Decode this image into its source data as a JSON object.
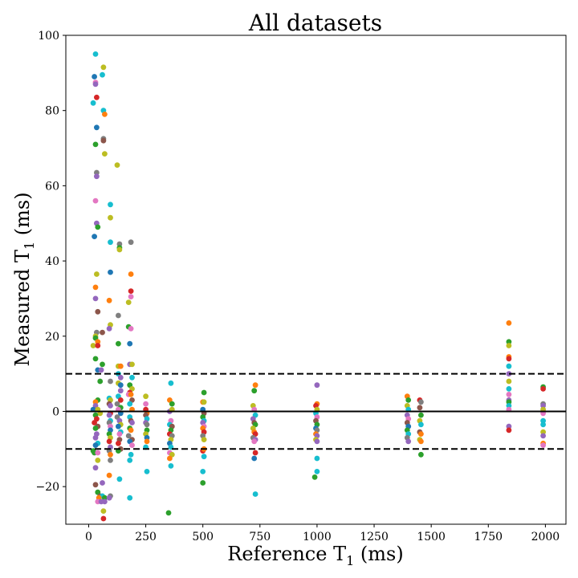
{
  "chart_data": {
    "type": "scatter",
    "title": "All datasets",
    "xlabel": "Reference T",
    "xlabel_sub": "1",
    "xlabel_unit": " (ms)",
    "ylabel": "Measured T",
    "ylabel_sub": "1",
    "ylabel_unit": " (ms)",
    "xlim": [
      -100,
      2090
    ],
    "ylim": [
      -30,
      100
    ],
    "xticks": [
      0,
      250,
      500,
      750,
      1000,
      1250,
      1500,
      1750,
      2000
    ],
    "yticks": [
      -20,
      0,
      20,
      40,
      60,
      80,
      100
    ],
    "xtick_labels": [
      "0",
      "250",
      "500",
      "750",
      "1000",
      "1250",
      "1500",
      "1750",
      "2000"
    ],
    "ytick_labels": [
      "−20",
      "0",
      "20",
      "40",
      "60",
      "80",
      "100"
    ],
    "reference_lines": [
      {
        "y": 0,
        "style": "solid"
      },
      {
        "y": 10,
        "style": "dashed"
      },
      {
        "y": -10,
        "style": "dashed"
      }
    ],
    "colors": [
      "#1f77b4",
      "#ff7f0e",
      "#2ca02c",
      "#d62728",
      "#9467bd",
      "#8c564b",
      "#e377c2",
      "#7f7f7f",
      "#bcbd22",
      "#17becf"
    ],
    "points": [
      [
        30,
        95,
        9
      ],
      [
        65,
        91.5,
        8
      ],
      [
        25,
        89,
        0
      ],
      [
        60,
        89.5,
        9
      ],
      [
        30,
        87.5,
        6
      ],
      [
        30,
        87,
        4
      ],
      [
        35,
        83.5,
        3
      ],
      [
        20,
        82,
        9
      ],
      [
        65,
        80,
        9
      ],
      [
        70,
        79,
        1
      ],
      [
        35,
        75.5,
        0
      ],
      [
        65,
        72.5,
        7
      ],
      [
        65,
        72,
        5
      ],
      [
        30,
        71,
        2
      ],
      [
        70,
        68.5,
        8
      ],
      [
        125,
        65.5,
        8
      ],
      [
        35,
        63.5,
        7
      ],
      [
        35,
        62.5,
        4
      ],
      [
        30,
        56,
        6
      ],
      [
        95,
        55,
        9
      ],
      [
        95,
        51.5,
        8
      ],
      [
        35,
        50,
        4
      ],
      [
        40,
        49,
        2
      ],
      [
        25,
        46.5,
        0
      ],
      [
        95,
        45,
        9
      ],
      [
        135,
        44.5,
        7
      ],
      [
        185,
        45,
        7
      ],
      [
        135,
        43.5,
        2
      ],
      [
        135,
        43,
        8
      ],
      [
        95,
        37,
        0
      ],
      [
        35,
        36.5,
        8
      ],
      [
        185,
        36.5,
        1
      ],
      [
        185,
        32,
        3
      ],
      [
        30,
        33,
        1
      ],
      [
        185,
        30.5,
        6
      ],
      [
        30,
        30,
        4
      ],
      [
        90,
        29.5,
        1
      ],
      [
        175,
        29,
        8
      ],
      [
        40,
        26.5,
        5
      ],
      [
        130,
        25.5,
        7
      ],
      [
        95,
        23,
        8
      ],
      [
        90,
        22,
        4
      ],
      [
        175,
        22.5,
        2
      ],
      [
        185,
        22,
        6
      ],
      [
        35,
        21,
        7
      ],
      [
        60,
        21,
        5
      ],
      [
        30,
        20,
        8
      ],
      [
        30,
        19.5,
        2
      ],
      [
        40,
        18.5,
        1
      ],
      [
        130,
        18,
        2
      ],
      [
        180,
        18,
        0
      ],
      [
        20,
        17.5,
        8
      ],
      [
        40,
        17.5,
        3
      ],
      [
        30,
        14,
        2
      ],
      [
        60,
        12.5,
        2
      ],
      [
        130,
        12,
        8
      ],
      [
        140,
        12,
        1
      ],
      [
        180,
        12.5,
        4
      ],
      [
        190,
        12.5,
        8
      ],
      [
        40,
        11,
        0
      ],
      [
        55,
        11,
        4
      ],
      [
        130,
        10,
        9
      ],
      [
        140,
        9,
        4
      ],
      [
        190,
        9,
        9
      ],
      [
        50,
        8,
        2
      ],
      [
        95,
        8,
        7
      ],
      [
        130,
        7.5,
        8
      ],
      [
        140,
        7,
        0
      ],
      [
        180,
        7,
        2
      ],
      [
        190,
        6,
        8
      ],
      [
        140,
        5.5,
        4
      ],
      [
        180,
        5,
        3
      ],
      [
        175,
        4.5,
        6
      ],
      [
        185,
        4.5,
        1
      ],
      [
        130,
        4,
        9
      ],
      [
        90,
        3.5,
        9
      ],
      [
        40,
        3,
        2
      ],
      [
        95,
        3,
        8
      ],
      [
        140,
        3,
        3
      ],
      [
        190,
        3,
        5
      ],
      [
        30,
        2.5,
        1
      ],
      [
        90,
        2,
        5
      ],
      [
        125,
        2,
        7
      ],
      [
        180,
        2,
        9
      ],
      [
        30,
        1.5,
        4
      ],
      [
        95,
        1.5,
        4
      ],
      [
        140,
        1,
        2
      ],
      [
        20,
        0.5,
        0
      ],
      [
        40,
        0.5,
        8
      ],
      [
        130,
        0.5,
        6
      ],
      [
        190,
        0.5,
        1
      ],
      [
        50,
        -0.5,
        8
      ],
      [
        95,
        -0.5,
        3
      ],
      [
        140,
        -0.5,
        0
      ],
      [
        30,
        -1,
        2
      ],
      [
        90,
        -1,
        4
      ],
      [
        125,
        -1.5,
        7
      ],
      [
        180,
        -1.5,
        9
      ],
      [
        35,
        -2,
        3
      ],
      [
        95,
        -2.5,
        9
      ],
      [
        135,
        -2.5,
        4
      ],
      [
        185,
        -2.5,
        5
      ],
      [
        25,
        -3,
        3
      ],
      [
        90,
        -3,
        7
      ],
      [
        140,
        -3.5,
        8
      ],
      [
        190,
        -3,
        4
      ],
      [
        40,
        -4,
        5
      ],
      [
        95,
        -4,
        6
      ],
      [
        130,
        -4,
        0
      ],
      [
        180,
        -4.5,
        2
      ],
      [
        30,
        -4.5,
        2
      ],
      [
        95,
        -5,
        0
      ],
      [
        140,
        -5.5,
        9
      ],
      [
        185,
        -5,
        1
      ],
      [
        35,
        -6,
        4
      ],
      [
        90,
        -6,
        2
      ],
      [
        135,
        -6,
        6
      ],
      [
        175,
        -6.5,
        7
      ],
      [
        30,
        -7,
        4
      ],
      [
        95,
        -7,
        8
      ],
      [
        135,
        -7.5,
        5
      ],
      [
        190,
        -7.5,
        5
      ],
      [
        40,
        -8.5,
        9
      ],
      [
        90,
        -8,
        3
      ],
      [
        130,
        -8.5,
        3
      ],
      [
        180,
        -8,
        0
      ],
      [
        30,
        -9,
        0
      ],
      [
        95,
        -9.5,
        4
      ],
      [
        140,
        -10,
        5
      ],
      [
        190,
        -9,
        6
      ],
      [
        20,
        -10.5,
        2
      ],
      [
        90,
        -10.5,
        7
      ],
      [
        130,
        -10.5,
        2
      ],
      [
        25,
        -11,
        2
      ],
      [
        40,
        -11,
        6
      ],
      [
        95,
        -11.5,
        1
      ],
      [
        185,
        -11.5,
        9
      ],
      [
        40,
        -13,
        8
      ],
      [
        95,
        -13,
        7
      ],
      [
        180,
        -13,
        9
      ],
      [
        30,
        -15,
        4
      ],
      [
        90,
        -17,
        1
      ],
      [
        60,
        -19,
        4
      ],
      [
        30,
        -19.5,
        5
      ],
      [
        135,
        -18,
        9
      ],
      [
        40,
        -21.5,
        2
      ],
      [
        50,
        -22.5,
        5
      ],
      [
        60,
        -22.5,
        9
      ],
      [
        45,
        -23,
        1
      ],
      [
        70,
        -23,
        2
      ],
      [
        95,
        -22.5,
        7
      ],
      [
        90,
        -23,
        4
      ],
      [
        180,
        -23,
        9
      ],
      [
        40,
        -24,
        6
      ],
      [
        55,
        -24,
        4
      ],
      [
        70,
        -24,
        4
      ],
      [
        65,
        -26.5,
        8
      ],
      [
        65,
        -28.5,
        3
      ],
      [
        250,
        4,
        8
      ],
      [
        250,
        2,
        6
      ],
      [
        250,
        0.5,
        3
      ],
      [
        255,
        -0.5,
        1
      ],
      [
        250,
        -1,
        5
      ],
      [
        255,
        -2,
        9
      ],
      [
        250,
        -3,
        4
      ],
      [
        255,
        -3.5,
        7
      ],
      [
        255,
        -5,
        2
      ],
      [
        250,
        -6,
        8
      ],
      [
        255,
        -7,
        0
      ],
      [
        255,
        -8,
        1
      ],
      [
        250,
        -9.5,
        9
      ],
      [
        255,
        -16,
        9
      ],
      [
        360,
        7.5,
        9
      ],
      [
        355,
        3,
        1
      ],
      [
        365,
        2,
        2
      ],
      [
        355,
        0,
        4
      ],
      [
        365,
        0.5,
        8
      ],
      [
        360,
        -2.5,
        6
      ],
      [
        355,
        -3.5,
        9
      ],
      [
        365,
        -4,
        5
      ],
      [
        360,
        -5,
        2
      ],
      [
        355,
        -6,
        3
      ],
      [
        365,
        -6.5,
        7
      ],
      [
        360,
        -7.5,
        8
      ],
      [
        355,
        -8.5,
        0
      ],
      [
        360,
        -9.5,
        9
      ],
      [
        355,
        -11,
        6
      ],
      [
        365,
        -11.5,
        8
      ],
      [
        355,
        -12.5,
        1
      ],
      [
        360,
        -14.5,
        9
      ],
      [
        350,
        -27,
        2
      ],
      [
        505,
        5,
        2
      ],
      [
        500,
        2.5,
        1
      ],
      [
        505,
        2.5,
        8
      ],
      [
        500,
        0.5,
        0
      ],
      [
        505,
        -0.5,
        5
      ],
      [
        500,
        -1.5,
        2
      ],
      [
        505,
        -2.5,
        9
      ],
      [
        500,
        -3,
        4
      ],
      [
        505,
        -4,
        6
      ],
      [
        500,
        -4.5,
        1
      ],
      [
        505,
        -5.5,
        3
      ],
      [
        500,
        -6.5,
        7
      ],
      [
        505,
        -7.5,
        8
      ],
      [
        500,
        -10.5,
        3
      ],
      [
        505,
        -10,
        1
      ],
      [
        505,
        -12,
        9
      ],
      [
        500,
        -16,
        9
      ],
      [
        500,
        -19,
        2
      ],
      [
        725,
        5.5,
        2
      ],
      [
        730,
        7,
        1
      ],
      [
        720,
        1.5,
        8
      ],
      [
        725,
        0.5,
        6
      ],
      [
        730,
        -1,
        9
      ],
      [
        720,
        -2,
        4
      ],
      [
        725,
        -3,
        5
      ],
      [
        730,
        -3.5,
        2
      ],
      [
        720,
        -4.5,
        8
      ],
      [
        725,
        -5.5,
        1
      ],
      [
        730,
        -6,
        3
      ],
      [
        720,
        -7,
        7
      ],
      [
        730,
        -7.5,
        4
      ],
      [
        725,
        -8,
        6
      ],
      [
        730,
        -11,
        3
      ],
      [
        725,
        -12.5,
        0
      ],
      [
        730,
        -22,
        9
      ],
      [
        1000,
        7,
        4
      ],
      [
        1000,
        2,
        1
      ],
      [
        995,
        1.5,
        3
      ],
      [
        1000,
        0.5,
        8
      ],
      [
        995,
        -0.5,
        9
      ],
      [
        1000,
        -1.5,
        6
      ],
      [
        995,
        -2.5,
        5
      ],
      [
        1000,
        -3.5,
        2
      ],
      [
        995,
        -4.5,
        0
      ],
      [
        1000,
        -5,
        7
      ],
      [
        995,
        -6,
        1
      ],
      [
        1000,
        -6.5,
        4
      ],
      [
        995,
        -7.5,
        8
      ],
      [
        1000,
        -8,
        4
      ],
      [
        1000,
        -12.5,
        9
      ],
      [
        1000,
        -16,
        9
      ],
      [
        990,
        -17.5,
        2
      ],
      [
        1395,
        4,
        1
      ],
      [
        1400,
        3,
        2
      ],
      [
        1395,
        1.5,
        8
      ],
      [
        1400,
        0.5,
        9
      ],
      [
        1395,
        -1,
        4
      ],
      [
        1400,
        -2,
        6
      ],
      [
        1395,
        -3,
        5
      ],
      [
        1400,
        -4,
        0
      ],
      [
        1395,
        -5,
        2
      ],
      [
        1400,
        -6,
        9
      ],
      [
        1395,
        -7,
        7
      ],
      [
        1400,
        -8,
        4
      ],
      [
        1450,
        3,
        3
      ],
      [
        1455,
        2.5,
        7
      ],
      [
        1450,
        1,
        5
      ],
      [
        1455,
        -1,
        2
      ],
      [
        1450,
        -2.5,
        8
      ],
      [
        1455,
        -3.5,
        9
      ],
      [
        1450,
        -5.5,
        5
      ],
      [
        1455,
        -6,
        1
      ],
      [
        1450,
        -7.5,
        8
      ],
      [
        1455,
        -8,
        1
      ],
      [
        1455,
        -11.5,
        2
      ],
      [
        1840,
        23.5,
        1
      ],
      [
        1840,
        18.5,
        2
      ],
      [
        1840,
        17.5,
        8
      ],
      [
        1840,
        14.5,
        1
      ],
      [
        1840,
        14,
        3
      ],
      [
        1840,
        12,
        9
      ],
      [
        1840,
        10,
        4
      ],
      [
        1840,
        8,
        8
      ],
      [
        1840,
        6,
        9
      ],
      [
        1840,
        4.5,
        6
      ],
      [
        1840,
        3,
        4
      ],
      [
        1840,
        2.5,
        2
      ],
      [
        1840,
        1.5,
        9
      ],
      [
        1840,
        0.5,
        6
      ],
      [
        1840,
        -4,
        4
      ],
      [
        1840,
        -5,
        3
      ],
      [
        1990,
        6.5,
        2
      ],
      [
        1990,
        6,
        3
      ],
      [
        1990,
        2,
        7
      ],
      [
        1990,
        1.5,
        4
      ],
      [
        1990,
        0.5,
        8
      ],
      [
        1990,
        -0.5,
        6
      ],
      [
        1990,
        -2.5,
        9
      ],
      [
        1990,
        -3.5,
        9
      ],
      [
        1990,
        -5.5,
        8
      ],
      [
        1990,
        -6.5,
        4
      ],
      [
        1990,
        -8.5,
        1
      ],
      [
        1990,
        -9,
        6
      ]
    ]
  }
}
